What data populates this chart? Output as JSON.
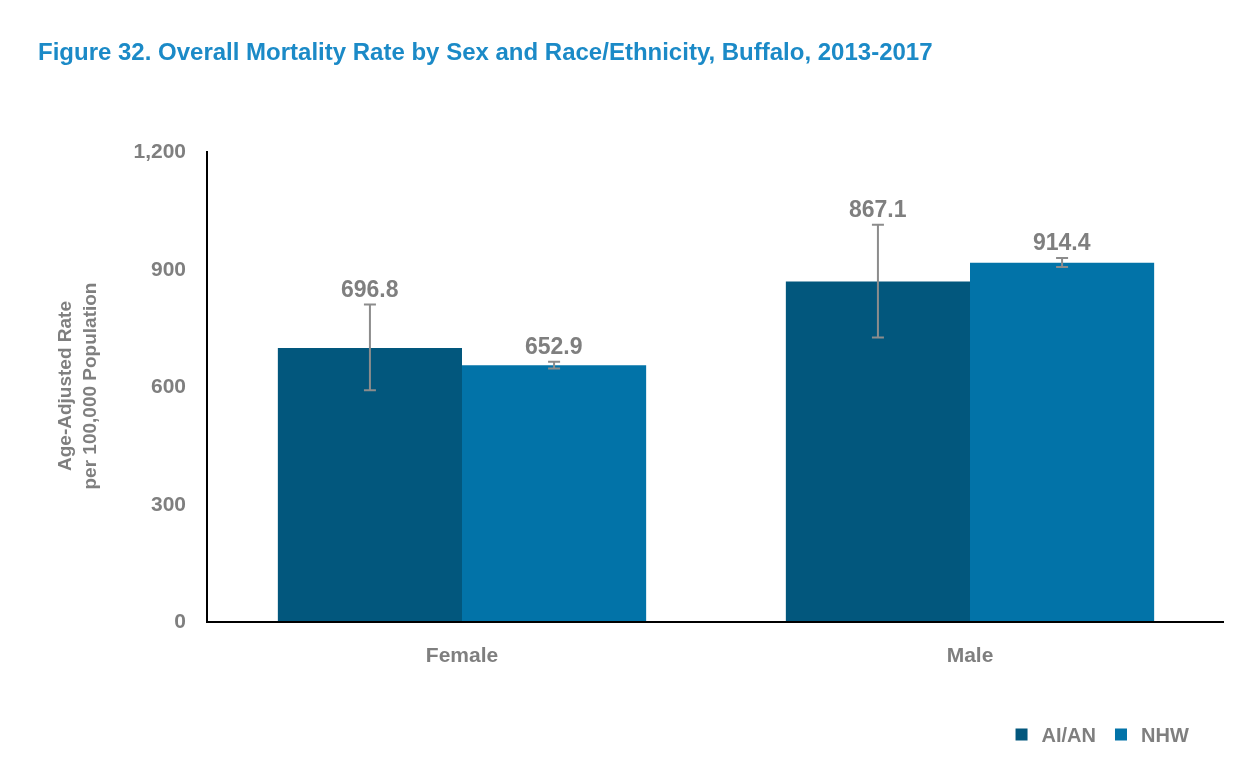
{
  "chart_data": {
    "type": "bar",
    "title": "Figure 32. Overall Mortality Rate by Sex and Race/Ethnicity, Buffalo, 2013-2017",
    "ylabel": "Age-Adjusted Rate\nper 100,000 Population",
    "categories": [
      "Female",
      "Male"
    ],
    "series": [
      {
        "name": "AI/AN",
        "color": "#02577d",
        "values": [
          696.8,
          867.1
        ],
        "errors": [
          [
            589,
            808
          ],
          [
            724,
            1012
          ]
        ]
      },
      {
        "name": "NHW",
        "color": "#0273a8",
        "values": [
          652.9,
          914.4
        ],
        "errors": [
          [
            645,
            662
          ],
          [
            904,
            927
          ]
        ]
      }
    ],
    "ylim": [
      0,
      1200
    ],
    "yticks": [
      0,
      300,
      600,
      900,
      {
        "value": 1200,
        "label": "1,200"
      }
    ],
    "data_labels": true,
    "grid": false,
    "legend": "bottom right"
  }
}
